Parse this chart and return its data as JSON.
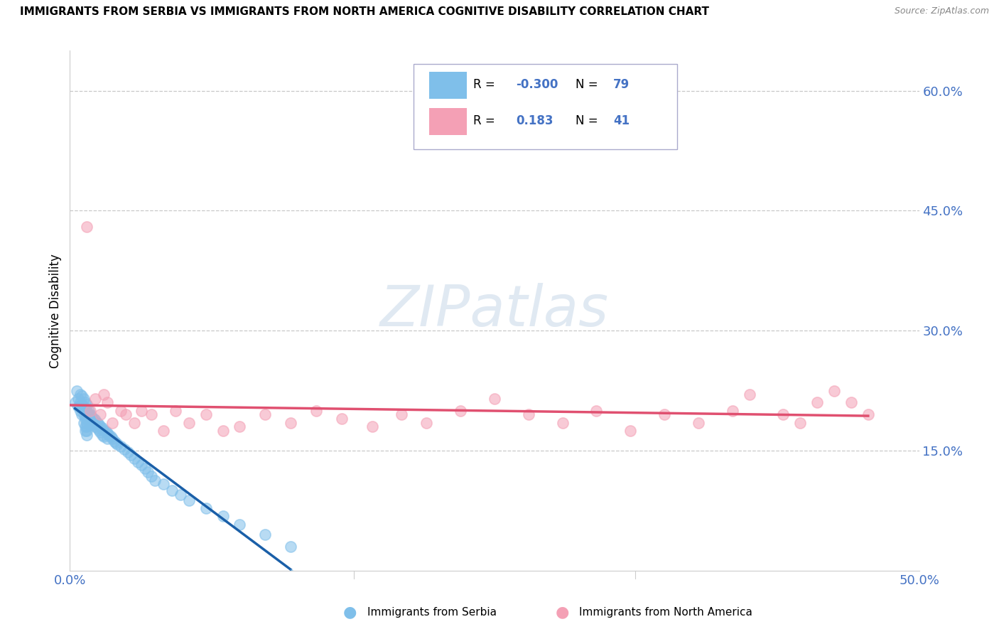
{
  "title": "IMMIGRANTS FROM SERBIA VS IMMIGRANTS FROM NORTH AMERICA COGNITIVE DISABILITY CORRELATION CHART",
  "source": "Source: ZipAtlas.com",
  "ylabel": "Cognitive Disability",
  "y_ticks": [
    0.15,
    0.3,
    0.45,
    0.6
  ],
  "y_tick_labels": [
    "15.0%",
    "30.0%",
    "45.0%",
    "60.0%"
  ],
  "x_lim": [
    0.0,
    0.5
  ],
  "y_lim": [
    0.0,
    0.65
  ],
  "serbia_R": -0.3,
  "serbia_N": 79,
  "north_america_R": 0.183,
  "north_america_N": 41,
  "serbia_color": "#7fbfea",
  "north_america_color": "#f4a0b5",
  "serbia_line_color": "#1a5fa8",
  "north_america_line_color": "#e05070",
  "serbia_dashed_color": "#7fbfea",
  "legend_label_1": "Immigrants from Serbia",
  "legend_label_2": "Immigrants from North America",
  "watermark": "ZIPatlas",
  "serbia_x": [
    0.003,
    0.004,
    0.005,
    0.005,
    0.006,
    0.006,
    0.006,
    0.007,
    0.007,
    0.007,
    0.007,
    0.008,
    0.008,
    0.008,
    0.008,
    0.009,
    0.009,
    0.009,
    0.009,
    0.009,
    0.01,
    0.01,
    0.01,
    0.01,
    0.01,
    0.01,
    0.01,
    0.01,
    0.011,
    0.011,
    0.011,
    0.012,
    0.012,
    0.012,
    0.013,
    0.013,
    0.014,
    0.014,
    0.015,
    0.015,
    0.016,
    0.016,
    0.017,
    0.017,
    0.018,
    0.018,
    0.019,
    0.019,
    0.02,
    0.02,
    0.021,
    0.022,
    0.022,
    0.023,
    0.024,
    0.025,
    0.026,
    0.027,
    0.028,
    0.03,
    0.032,
    0.034,
    0.036,
    0.038,
    0.04,
    0.042,
    0.044,
    0.046,
    0.048,
    0.05,
    0.055,
    0.06,
    0.065,
    0.07,
    0.08,
    0.09,
    0.1,
    0.115,
    0.13
  ],
  "serbia_y": [
    0.21,
    0.225,
    0.215,
    0.205,
    0.22,
    0.21,
    0.2,
    0.218,
    0.208,
    0.195,
    0.205,
    0.215,
    0.205,
    0.195,
    0.185,
    0.21,
    0.2,
    0.19,
    0.18,
    0.175,
    0.208,
    0.2,
    0.195,
    0.19,
    0.185,
    0.18,
    0.175,
    0.17,
    0.2,
    0.195,
    0.188,
    0.195,
    0.188,
    0.182,
    0.192,
    0.185,
    0.19,
    0.183,
    0.188,
    0.18,
    0.185,
    0.178,
    0.183,
    0.176,
    0.18,
    0.173,
    0.178,
    0.17,
    0.176,
    0.168,
    0.174,
    0.172,
    0.165,
    0.17,
    0.168,
    0.165,
    0.162,
    0.16,
    0.158,
    0.155,
    0.152,
    0.148,
    0.145,
    0.14,
    0.136,
    0.132,
    0.128,
    0.123,
    0.118,
    0.113,
    0.108,
    0.1,
    0.095,
    0.088,
    0.078,
    0.068,
    0.058,
    0.045,
    0.03
  ],
  "na_x": [
    0.01,
    0.012,
    0.015,
    0.018,
    0.02,
    0.022,
    0.025,
    0.03,
    0.033,
    0.038,
    0.042,
    0.048,
    0.055,
    0.062,
    0.07,
    0.08,
    0.09,
    0.1,
    0.115,
    0.13,
    0.145,
    0.16,
    0.178,
    0.195,
    0.21,
    0.23,
    0.25,
    0.27,
    0.29,
    0.31,
    0.33,
    0.35,
    0.37,
    0.39,
    0.4,
    0.42,
    0.43,
    0.44,
    0.45,
    0.46,
    0.47
  ],
  "na_y": [
    0.43,
    0.2,
    0.215,
    0.195,
    0.22,
    0.21,
    0.185,
    0.2,
    0.195,
    0.185,
    0.2,
    0.195,
    0.175,
    0.2,
    0.185,
    0.195,
    0.175,
    0.18,
    0.195,
    0.185,
    0.2,
    0.19,
    0.18,
    0.195,
    0.185,
    0.2,
    0.215,
    0.195,
    0.185,
    0.2,
    0.175,
    0.195,
    0.185,
    0.2,
    0.22,
    0.195,
    0.185,
    0.21,
    0.225,
    0.21,
    0.195
  ]
}
